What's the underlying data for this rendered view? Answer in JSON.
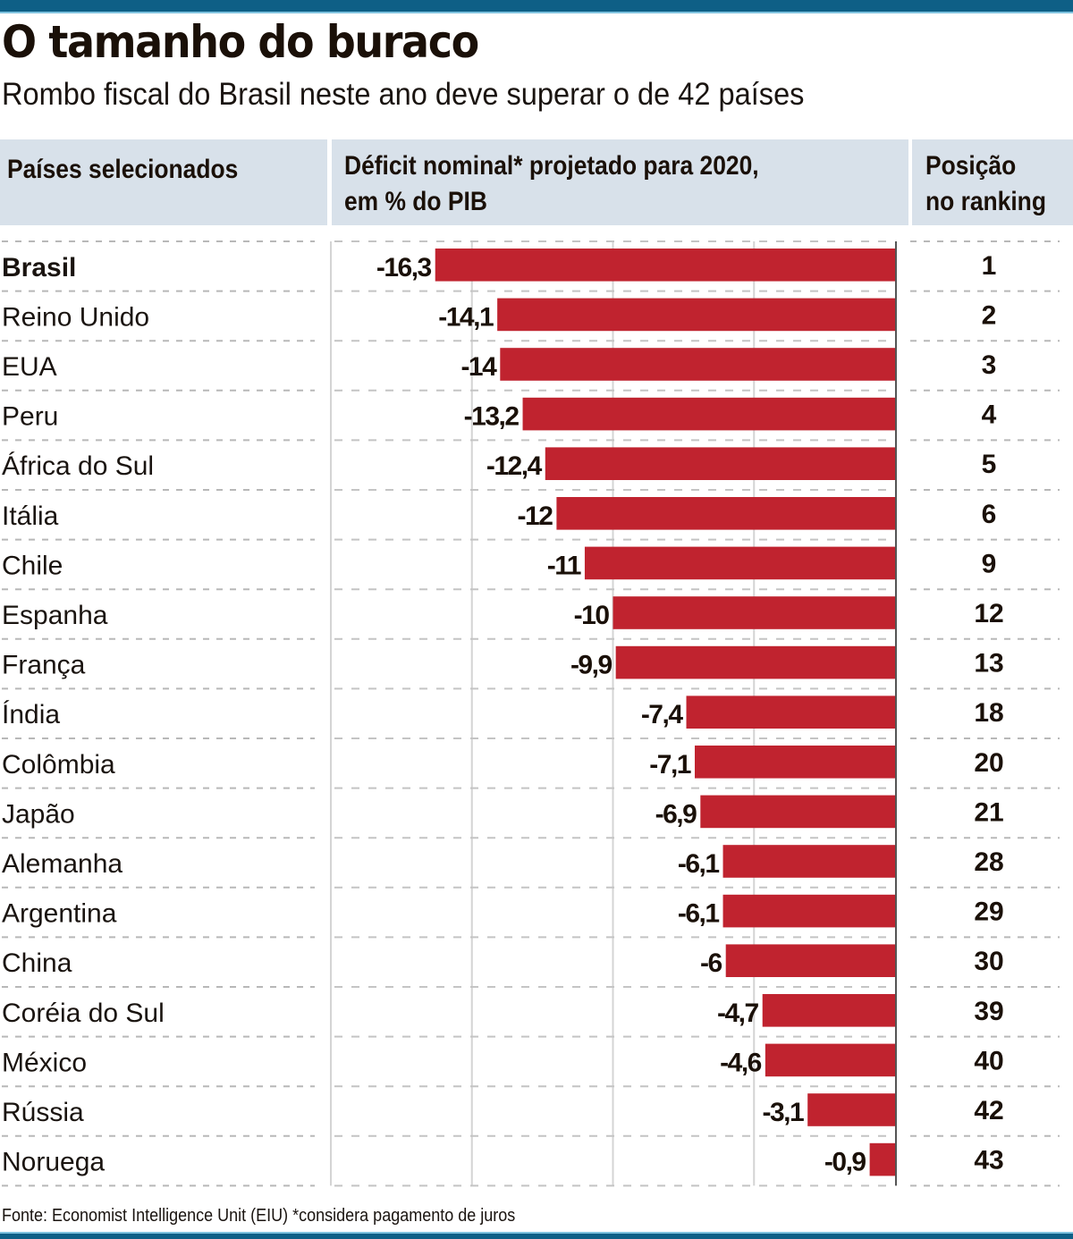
{
  "header": {
    "title": "O tamanho do buraco",
    "subtitle": "Rombo fiscal do Brasil neste ano deve superar o de 42 países"
  },
  "table_headers": {
    "countries": "Países selecionados",
    "deficit_line1": "Déficit nominal* projetado para 2020,",
    "deficit_line2": "em % do PIB",
    "rank_line1": "Posição",
    "rank_line2": "no ranking"
  },
  "footer": {
    "source": "Fonte: Economist Intelligence Unit (EIU) *considera pagamento de juros"
  },
  "colors": {
    "bar": "#c0232f",
    "header_bg": "#d8e1ea",
    "accent_bar": "#0e5f86"
  },
  "chart_data": {
    "type": "bar",
    "orientation": "horizontal",
    "title": "O tamanho do buraco",
    "subtitle": "Rombo fiscal do Brasil neste ano deve superar o de 42 países",
    "xlabel": "Déficit nominal* projetado para 2020, em % do PIB",
    "ylabel": "Países selecionados",
    "xlim": [
      -20,
      0
    ],
    "grid": true,
    "gridlines_at": [
      -20,
      -15,
      -10,
      -5,
      0
    ],
    "categories": [
      "Brasil",
      "Reino Unido",
      "EUA",
      "Peru",
      "África do Sul",
      "Itália",
      "Chile",
      "Espanha",
      "França",
      "Índia",
      "Colômbia",
      "Japão",
      "Alemanha",
      "Argentina",
      "China",
      "Coréia do Sul",
      "México",
      "Rússia",
      "Noruega"
    ],
    "values": [
      -16.3,
      -14.1,
      -14,
      -13.2,
      -12.4,
      -12,
      -11,
      -10,
      -9.9,
      -7.4,
      -7.1,
      -6.9,
      -6.1,
      -6.1,
      -6,
      -4.7,
      -4.6,
      -3.1,
      -0.9
    ],
    "value_labels": [
      "-16,3",
      "-14,1",
      "-14",
      "-13,2",
      "-12,4",
      "-12",
      "-11",
      "-10",
      "-9,9",
      "-7,4",
      "-7,1",
      "-6,9",
      "-6,1",
      "-6,1",
      "-6",
      "-4,7",
      "-4,6",
      "-3,1",
      "-0,9"
    ],
    "ranking": [
      "1",
      "2",
      "3",
      "4",
      "5",
      "6",
      "9",
      "12",
      "13",
      "18",
      "20",
      "21",
      "28",
      "29",
      "30",
      "39",
      "40",
      "42",
      "43"
    ],
    "highlighted": [
      "Brasil"
    ],
    "rank_column_label": "Posição no ranking"
  }
}
